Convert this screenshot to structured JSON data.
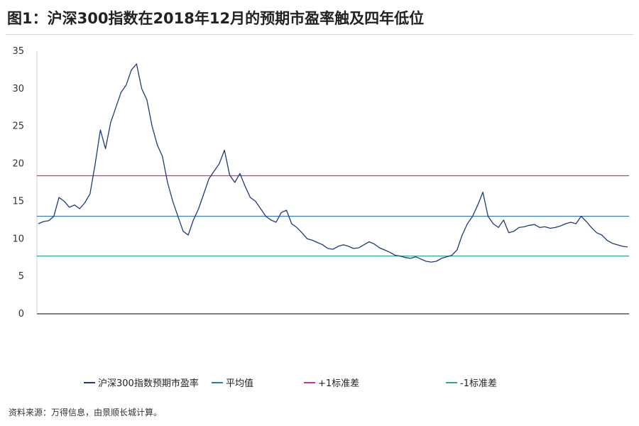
{
  "title": "图1：沪深300指数在2018年12月的预期市盈率触及四年低位",
  "source": "资料来源：万得信息，由景顺长城计算。",
  "chart_data": {
    "type": "line",
    "ylim": [
      0,
      35
    ],
    "yticks": [
      0,
      5,
      10,
      15,
      20,
      25,
      30,
      35
    ],
    "grid": false,
    "legend_position": "bottom",
    "series": [
      {
        "name": "沪深300指数预期市盈率",
        "color": "#1f3a7a",
        "values": [
          12.0,
          12.3,
          12.4,
          13.0,
          15.5,
          15.0,
          14.2,
          14.5,
          14.0,
          14.8,
          16.0,
          20.0,
          24.5,
          22.0,
          25.5,
          27.5,
          29.5,
          30.5,
          32.5,
          33.3,
          30.0,
          28.5,
          25.0,
          22.5,
          21.0,
          17.5,
          15.0,
          13.0,
          11.0,
          10.5,
          12.5,
          14.0,
          16.0,
          18.0,
          19.0,
          20.0,
          21.8,
          18.5,
          17.5,
          18.7,
          17.0,
          15.5,
          15.0,
          14.0,
          13.0,
          12.5,
          12.2,
          13.5,
          13.8,
          12.0,
          11.5,
          10.8,
          10.0,
          9.8,
          9.5,
          9.2,
          8.7,
          8.6,
          9.0,
          9.2,
          9.0,
          8.7,
          8.8,
          9.2,
          9.6,
          9.3,
          8.8,
          8.5,
          8.2,
          7.8,
          7.7,
          7.5,
          7.4,
          7.6,
          7.3,
          7.0,
          6.9,
          7.0,
          7.4,
          7.6,
          7.8,
          8.5,
          10.5,
          12.0,
          13.0,
          14.5,
          16.2,
          13.0,
          12.0,
          11.5,
          12.5,
          10.8,
          11.0,
          11.5,
          11.6,
          11.8,
          11.9,
          11.5,
          11.6,
          11.4,
          11.5,
          11.7,
          12.0,
          12.2,
          12.0,
          13.0,
          12.3,
          11.5,
          10.8,
          10.5,
          9.8,
          9.4,
          9.2,
          9.0,
          8.9
        ]
      },
      {
        "name": "平均值",
        "color": "#2e75b6",
        "value": 13.0
      },
      {
        "name": "+1标准差",
        "color": "#cc3399",
        "value": 18.4
      },
      {
        "name": "-1标准差",
        "color": "#2aa889",
        "value": 7.7
      }
    ]
  }
}
